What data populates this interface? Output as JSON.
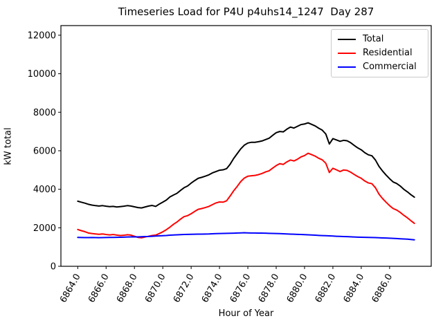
{
  "figure": {
    "title": "Timeseries Load for P4U p4uhs14_1247  Day 287",
    "xlabel": "Hour of Year",
    "ylabel": "kW total"
  },
  "chart_data": {
    "type": "line",
    "title": "Timeseries Load for P4U p4uhs14_1247  Day 287",
    "xlabel": "Hour of Year",
    "ylabel": "kW total",
    "grid": false,
    "legend_position": "upper right",
    "xlim": [
      6862.8125,
      6888.9375
    ],
    "ylim": [
      0,
      12500
    ],
    "xticks": [
      6864,
      6866,
      6868,
      6870,
      6872,
      6874,
      6876,
      6878,
      6880,
      6882,
      6884,
      6886
    ],
    "xtick_labels": [
      "6864.0",
      "6866.0",
      "6868.0",
      "6870.0",
      "6872.0",
      "6874.0",
      "6876.0",
      "6878.0",
      "6880.0",
      "6882.0",
      "6884.0",
      "6886.0"
    ],
    "xtick_rotation_deg": 60,
    "yticks": [
      0,
      2000,
      4000,
      6000,
      8000,
      10000,
      12000
    ],
    "ytick_labels": [
      "0",
      "2000",
      "4000",
      "6000",
      "8000",
      "10000",
      "12000"
    ],
    "x": [
      6864.0,
      6864.25,
      6864.5,
      6864.75,
      6865.0,
      6865.25,
      6865.5,
      6865.75,
      6866.0,
      6866.25,
      6866.5,
      6866.75,
      6867.0,
      6867.25,
      6867.5,
      6867.75,
      6868.0,
      6868.25,
      6868.5,
      6868.75,
      6869.0,
      6869.25,
      6869.5,
      6869.75,
      6870.0,
      6870.25,
      6870.5,
      6870.75,
      6871.0,
      6871.25,
      6871.5,
      6871.75,
      6872.0,
      6872.25,
      6872.5,
      6872.75,
      6873.0,
      6873.25,
      6873.5,
      6873.75,
      6874.0,
      6874.25,
      6874.5,
      6874.75,
      6875.0,
      6875.25,
      6875.5,
      6875.75,
      6876.0,
      6876.25,
      6876.5,
      6876.75,
      6877.0,
      6877.25,
      6877.5,
      6877.75,
      6878.0,
      6878.25,
      6878.5,
      6878.75,
      6879.0,
      6879.25,
      6879.5,
      6879.75,
      6880.0,
      6880.25,
      6880.5,
      6880.75,
      6881.0,
      6881.25,
      6881.5,
      6881.75,
      6882.0,
      6882.25,
      6882.5,
      6882.75,
      6883.0,
      6883.25,
      6883.5,
      6883.75,
      6884.0,
      6884.25,
      6884.5,
      6884.75,
      6885.0,
      6885.25,
      6885.5,
      6885.75,
      6886.0,
      6886.25,
      6886.5,
      6886.75,
      6887.0,
      6887.25,
      6887.5,
      6887.75
    ],
    "series": [
      {
        "name": "Total",
        "color": "#000000",
        "values": [
          3380,
          3330,
          3280,
          3220,
          3180,
          3150,
          3130,
          3150,
          3120,
          3100,
          3110,
          3080,
          3100,
          3120,
          3150,
          3130,
          3090,
          3050,
          3030,
          3080,
          3130,
          3160,
          3110,
          3230,
          3330,
          3440,
          3600,
          3700,
          3790,
          3940,
          4080,
          4170,
          4320,
          4450,
          4570,
          4620,
          4680,
          4750,
          4850,
          4920,
          4990,
          5010,
          5070,
          5300,
          5600,
          5850,
          6100,
          6290,
          6400,
          6440,
          6440,
          6470,
          6510,
          6580,
          6650,
          6800,
          6940,
          7000,
          6980,
          7120,
          7230,
          7180,
          7270,
          7360,
          7390,
          7450,
          7370,
          7290,
          7170,
          7070,
          6870,
          6350,
          6630,
          6560,
          6490,
          6540,
          6520,
          6420,
          6280,
          6150,
          6050,
          5900,
          5790,
          5740,
          5520,
          5190,
          4950,
          4740,
          4550,
          4380,
          4300,
          4170,
          4000,
          3870,
          3720,
          3590
        ]
      },
      {
        "name": "Residential",
        "color": "#ff0000",
        "values": [
          1910,
          1850,
          1800,
          1730,
          1700,
          1680,
          1660,
          1680,
          1650,
          1630,
          1650,
          1620,
          1600,
          1610,
          1640,
          1620,
          1560,
          1500,
          1480,
          1520,
          1560,
          1600,
          1620,
          1700,
          1790,
          1900,
          2030,
          2180,
          2300,
          2450,
          2580,
          2630,
          2730,
          2850,
          2960,
          3000,
          3050,
          3110,
          3200,
          3290,
          3340,
          3330,
          3400,
          3650,
          3920,
          4150,
          4400,
          4580,
          4680,
          4700,
          4720,
          4760,
          4820,
          4900,
          4960,
          5100,
          5230,
          5330,
          5290,
          5420,
          5520,
          5470,
          5560,
          5680,
          5750,
          5870,
          5800,
          5720,
          5610,
          5530,
          5350,
          4870,
          5090,
          5010,
          4920,
          5000,
          4980,
          4890,
          4770,
          4660,
          4570,
          4430,
          4330,
          4290,
          4080,
          3750,
          3520,
          3330,
          3150,
          3000,
          2920,
          2800,
          2650,
          2520,
          2370,
          2230
        ]
      },
      {
        "name": "Commercial",
        "color": "#0000ff",
        "values": [
          1500,
          1495,
          1490,
          1492,
          1495,
          1490,
          1488,
          1492,
          1495,
          1500,
          1498,
          1502,
          1510,
          1515,
          1520,
          1525,
          1530,
          1528,
          1535,
          1545,
          1550,
          1560,
          1570,
          1580,
          1590,
          1600,
          1615,
          1625,
          1635,
          1645,
          1650,
          1655,
          1660,
          1665,
          1670,
          1672,
          1675,
          1680,
          1690,
          1695,
          1700,
          1705,
          1710,
          1715,
          1720,
          1728,
          1735,
          1740,
          1735,
          1730,
          1728,
          1725,
          1722,
          1718,
          1712,
          1708,
          1702,
          1695,
          1688,
          1680,
          1672,
          1665,
          1658,
          1650,
          1642,
          1635,
          1625,
          1615,
          1605,
          1595,
          1588,
          1580,
          1570,
          1560,
          1552,
          1545,
          1538,
          1530,
          1522,
          1515,
          1510,
          1505,
          1500,
          1495,
          1490,
          1482,
          1475,
          1468,
          1460,
          1450,
          1440,
          1430,
          1420,
          1408,
          1392,
          1375
        ]
      }
    ]
  }
}
